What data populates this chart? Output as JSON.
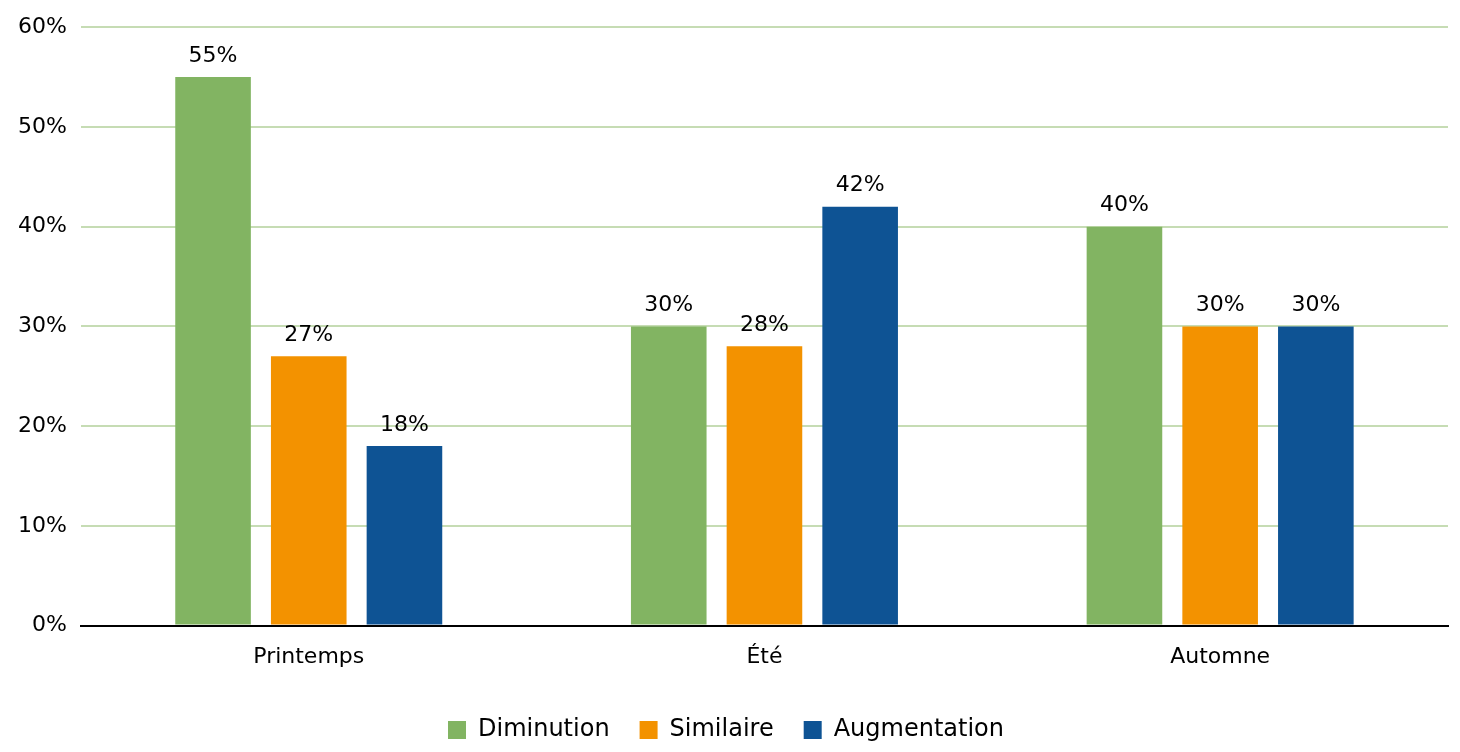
{
  "chart_data": {
    "type": "bar",
    "categories": [
      "Printemps",
      "Été",
      "Automne"
    ],
    "series": [
      {
        "name": "Diminution",
        "color": "#82b462",
        "values": [
          55,
          30,
          40
        ],
        "value_labels": [
          "55%",
          "30%",
          "40%"
        ]
      },
      {
        "name": "Similaire",
        "color": "#f39200",
        "values": [
          27,
          28,
          30
        ],
        "value_labels": [
          "27%",
          "28%",
          "30%"
        ]
      },
      {
        "name": "Augmentation",
        "color": "#0e5394",
        "values": [
          18,
          42,
          30
        ],
        "value_labels": [
          "18%",
          "42%",
          "30%"
        ]
      }
    ],
    "ylim": [
      0,
      60
    ],
    "yticks": [
      {
        "value": 0,
        "label": "0%"
      },
      {
        "value": 10,
        "label": "10%"
      },
      {
        "value": 20,
        "label": "20%"
      },
      {
        "value": 30,
        "label": "30%"
      },
      {
        "value": 40,
        "label": "40%"
      },
      {
        "value": 50,
        "label": "50%"
      },
      {
        "value": 60,
        "label": "60%"
      }
    ],
    "grid": "y",
    "legend": "bottom"
  }
}
